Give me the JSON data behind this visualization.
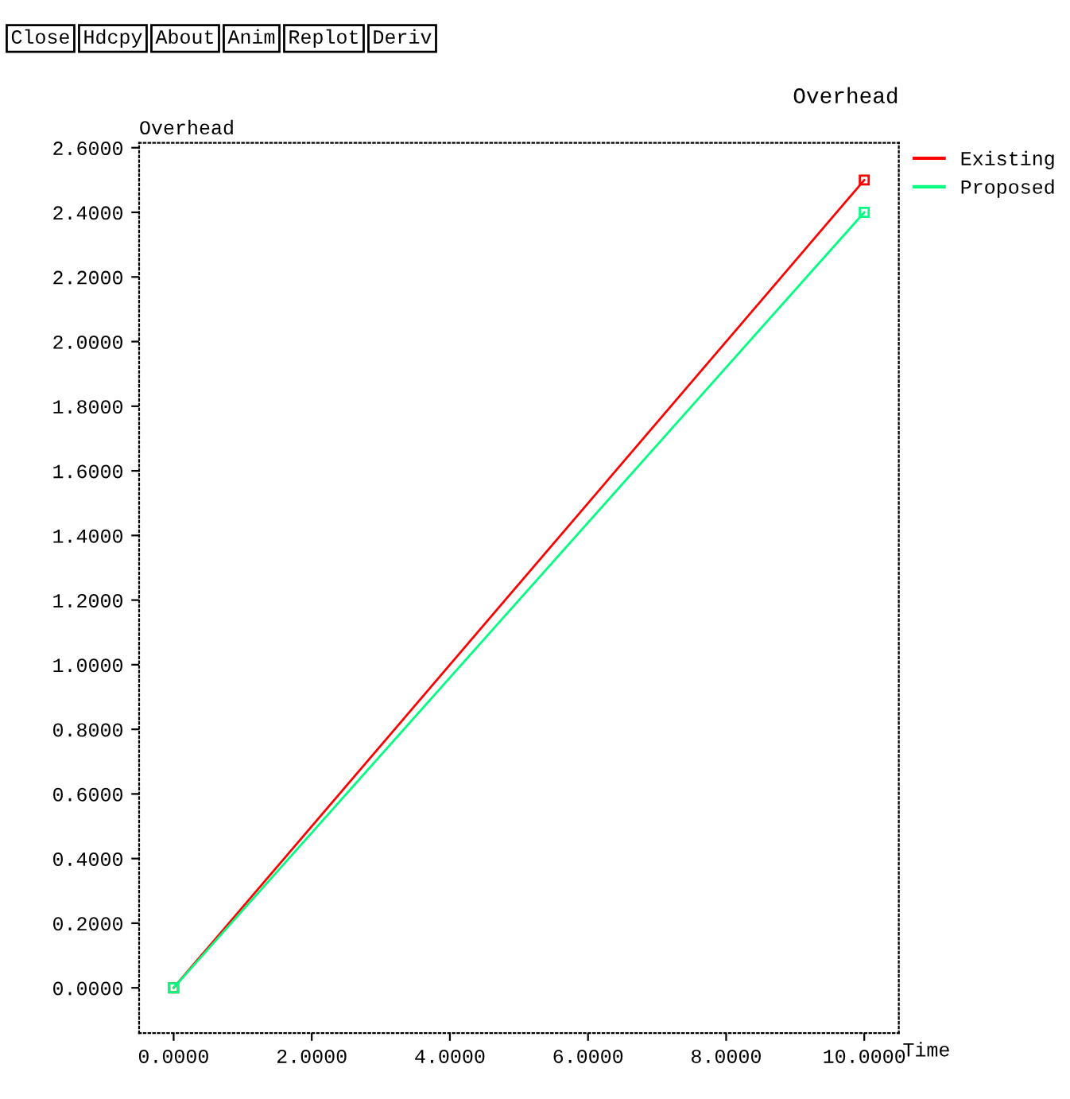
{
  "chart_data": {
    "type": "line",
    "title": "Overhead",
    "xlabel": "Time",
    "ylabel": "Overhead",
    "annotations": [
      "Close",
      "Hdcpy",
      "About",
      "Anim",
      "Replot",
      "Deriv"
    ],
    "series": [
      {
        "name": "Existing",
        "color": "#ff0000",
        "values": [
          0,
          2.5
        ]
      },
      {
        "name": "Proposed",
        "color": "#00ff80",
        "values": [
          0,
          2.4
        ]
      }
    ],
    "x": [
      0,
      10
    ],
    "xlim": [
      -0.5,
      10.5
    ],
    "ylim": [
      -0.14,
      2.615
    ],
    "xticks": [
      {
        "value": 0,
        "label": "0.0000"
      },
      {
        "value": 2,
        "label": "2.0000"
      },
      {
        "value": 4,
        "label": "4.0000"
      },
      {
        "value": 6,
        "label": "6.0000"
      },
      {
        "value": 8,
        "label": "8.0000"
      },
      {
        "value": 10,
        "label": "10.0000"
      }
    ],
    "yticks": [
      {
        "value": 0,
        "label": "0.0000"
      },
      {
        "value": 0.2,
        "label": "0.2000"
      },
      {
        "value": 0.4,
        "label": "0.4000"
      },
      {
        "value": 0.6,
        "label": "0.6000"
      },
      {
        "value": 0.8,
        "label": "0.8000"
      },
      {
        "value": 1.0,
        "label": "1.0000"
      },
      {
        "value": 1.2,
        "label": "1.2000"
      },
      {
        "value": 1.4,
        "label": "1.4000"
      },
      {
        "value": 1.6,
        "label": "1.6000"
      },
      {
        "value": 1.8,
        "label": "1.8000"
      },
      {
        "value": 2.0,
        "label": "2.0000"
      },
      {
        "value": 2.2,
        "label": "2.2000"
      },
      {
        "value": 2.4,
        "label": "2.4000"
      },
      {
        "value": 2.6,
        "label": "2.6000"
      }
    ],
    "grid": false,
    "legend": "right",
    "marker": "square",
    "line_style": "solid"
  }
}
